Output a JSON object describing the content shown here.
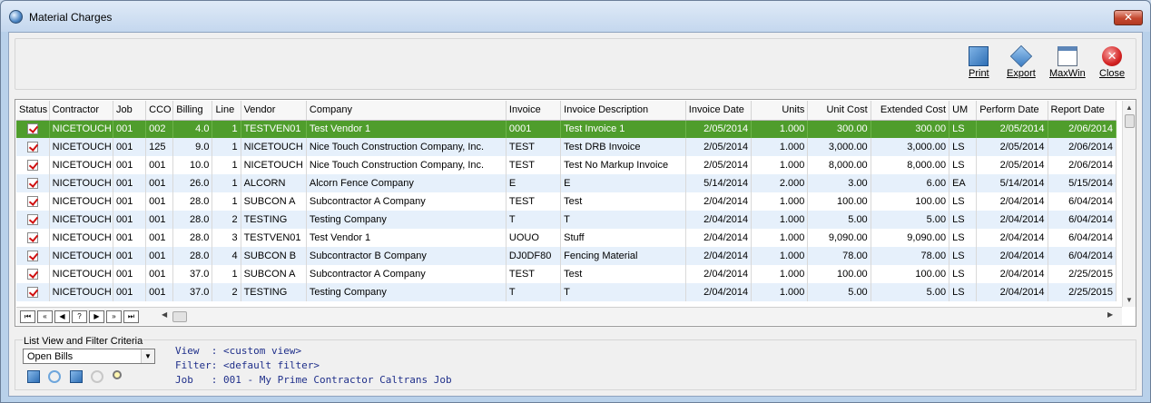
{
  "window": {
    "title": "Material Charges",
    "close_glyph": "✕"
  },
  "toolbar": {
    "print": "Print",
    "export": "Export",
    "maxwin": "MaxWin",
    "close": "Close"
  },
  "grid": {
    "columns": [
      "Status",
      "Contractor",
      "Job",
      "CCO",
      "Billing",
      "Line",
      "Vendor",
      "Company",
      "Invoice",
      "Invoice Description",
      "Invoice Date",
      "Units",
      "Unit Cost",
      "Extended Cost",
      "UM",
      "Perform Date",
      "Report Date"
    ],
    "rows": [
      {
        "contractor": "NICETOUCH",
        "job": "001",
        "cco": "002",
        "billing": "4.0",
        "line": "1",
        "vendor": "TESTVEN01",
        "company": "Test Vendor 1",
        "invoice": "0001",
        "desc": "Test Invoice 1",
        "inv_date": "2/05/2014",
        "units": "1.000",
        "unit_cost": "300.00",
        "ext_cost": "300.00",
        "um": "LS",
        "perform": "2/05/2014",
        "report": "2/06/2014"
      },
      {
        "contractor": "NICETOUCH",
        "job": "001",
        "cco": "125",
        "billing": "9.0",
        "line": "1",
        "vendor": "NICETOUCH",
        "company": "Nice Touch Construction Company, Inc.",
        "invoice": "TEST",
        "desc": "Test DRB Invoice",
        "inv_date": "2/05/2014",
        "units": "1.000",
        "unit_cost": "3,000.00",
        "ext_cost": "3,000.00",
        "um": "LS",
        "perform": "2/05/2014",
        "report": "2/06/2014"
      },
      {
        "contractor": "NICETOUCH",
        "job": "001",
        "cco": "001",
        "billing": "10.0",
        "line": "1",
        "vendor": "NICETOUCH",
        "company": "Nice Touch Construction Company, Inc.",
        "invoice": " TEST",
        "desc": "Test No Markup Invoice",
        "inv_date": "2/05/2014",
        "units": "1.000",
        "unit_cost": "8,000.00",
        "ext_cost": "8,000.00",
        "um": "LS",
        "perform": "2/05/2014",
        "report": "2/06/2014"
      },
      {
        "contractor": "NICETOUCH",
        "job": "001",
        "cco": "001",
        "billing": "26.0",
        "line": "1",
        "vendor": "ALCORN",
        "company": "Alcorn Fence Company",
        "invoice": "E",
        "desc": "E",
        "inv_date": "5/14/2014",
        "units": "2.000",
        "unit_cost": "3.00",
        "ext_cost": "6.00",
        "um": "EA",
        "perform": "5/14/2014",
        "report": "5/15/2014"
      },
      {
        "contractor": "NICETOUCH",
        "job": "001",
        "cco": "001",
        "billing": "28.0",
        "line": "1",
        "vendor": "SUBCON A",
        "company": "Subcontractor A Company",
        "invoice": "TEST",
        "desc": "Test",
        "inv_date": "2/04/2014",
        "units": "1.000",
        "unit_cost": "100.00",
        "ext_cost": "100.00",
        "um": "LS",
        "perform": "2/04/2014",
        "report": "6/04/2014"
      },
      {
        "contractor": "NICETOUCH",
        "job": "001",
        "cco": "001",
        "billing": "28.0",
        "line": "2",
        "vendor": "TESTING",
        "company": "Testing Company",
        "invoice": "T",
        "desc": "T",
        "inv_date": "2/04/2014",
        "units": "1.000",
        "unit_cost": "5.00",
        "ext_cost": "5.00",
        "um": "LS",
        "perform": "2/04/2014",
        "report": "6/04/2014"
      },
      {
        "contractor": "NICETOUCH",
        "job": "001",
        "cco": "001",
        "billing": "28.0",
        "line": "3",
        "vendor": "TESTVEN01",
        "company": "Test Vendor 1",
        "invoice": "UOUO",
        "desc": "Stuff",
        "inv_date": "2/04/2014",
        "units": "1.000",
        "unit_cost": "9,090.00",
        "ext_cost": "9,090.00",
        "um": "LS",
        "perform": "2/04/2014",
        "report": "6/04/2014"
      },
      {
        "contractor": "NICETOUCH",
        "job": "001",
        "cco": "001",
        "billing": "28.0",
        "line": "4",
        "vendor": "SUBCON B",
        "company": "Subcontractor B Company",
        "invoice": "DJ0DF80",
        "desc": "Fencing Material",
        "inv_date": "2/04/2014",
        "units": "1.000",
        "unit_cost": "78.00",
        "ext_cost": "78.00",
        "um": "LS",
        "perform": "2/04/2014",
        "report": "6/04/2014"
      },
      {
        "contractor": "NICETOUCH",
        "job": "001",
        "cco": "001",
        "billing": "37.0",
        "line": "1",
        "vendor": "SUBCON A",
        "company": "Subcontractor A Company",
        "invoice": "TEST",
        "desc": "Test",
        "inv_date": "2/04/2014",
        "units": "1.000",
        "unit_cost": "100.00",
        "ext_cost": "100.00",
        "um": "LS",
        "perform": "2/04/2014",
        "report": "2/25/2015"
      },
      {
        "contractor": "NICETOUCH",
        "job": "001",
        "cco": "001",
        "billing": "37.0",
        "line": "2",
        "vendor": "TESTING",
        "company": "Testing Company",
        "invoice": "T",
        "desc": "T",
        "inv_date": "2/04/2014",
        "units": "1.000",
        "unit_cost": "5.00",
        "ext_cost": "5.00",
        "um": "LS",
        "perform": "2/04/2014",
        "report": "2/25/2015"
      }
    ]
  },
  "navigator": {
    "buttons": [
      "⏮",
      "«",
      "◀",
      "?",
      "▶",
      "»",
      "⏭"
    ]
  },
  "criteria": {
    "label": "List View and Filter Criteria",
    "selected": "Open Bills",
    "view_line": "View  : <custom view>",
    "filter_line": "Filter: <default filter>",
    "job_line": "Job   : 001 - My Prime Contractor Caltrans Job"
  },
  "colors": {
    "selected_row": "#4f9d2c",
    "alt_row": "#e6f0fb",
    "info_text": "#1f2f8a"
  }
}
